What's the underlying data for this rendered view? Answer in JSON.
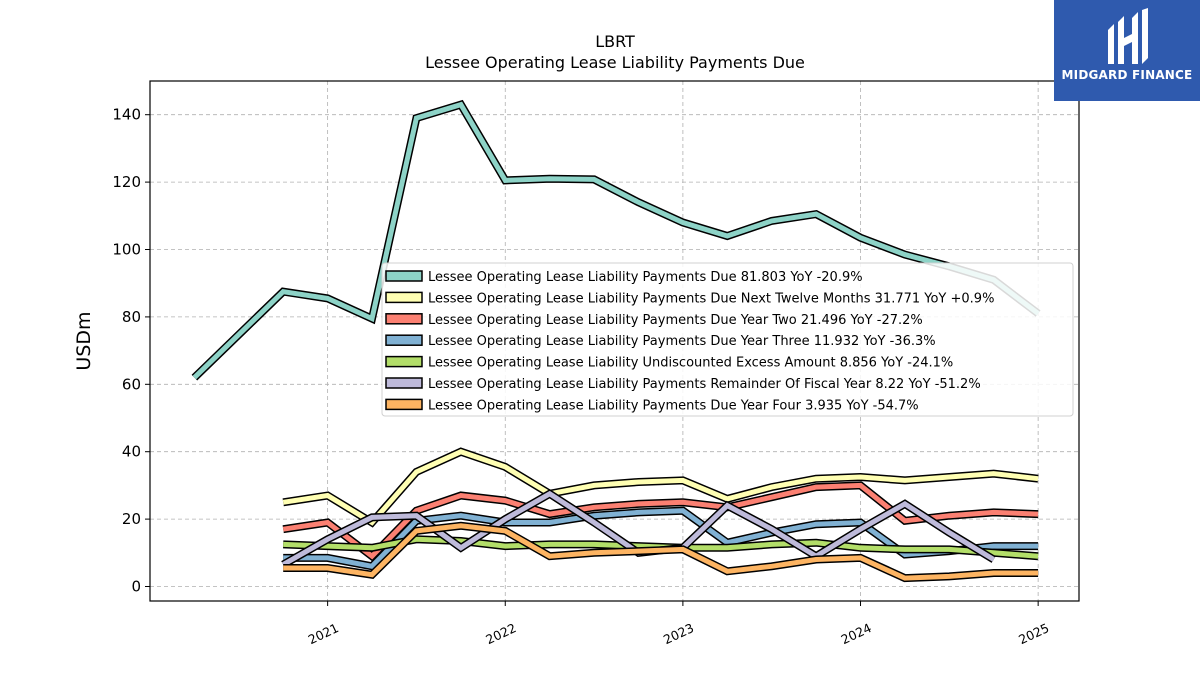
{
  "chart_data": {
    "type": "line",
    "title": "LBRT",
    "subtitle": "Lessee Operating Lease Liability Payments Due",
    "ylabel": "USDm",
    "xlabel": "",
    "xlim": [
      2020.0,
      2025.23
    ],
    "ylim": [
      -4.3,
      150
    ],
    "x_ticks": [
      2021,
      2022,
      2023,
      2024,
      2025
    ],
    "y_ticks": [
      0,
      20,
      40,
      60,
      80,
      100,
      120,
      140
    ],
    "grid": true,
    "legend_position": "center-right",
    "x": [
      2020.25,
      2020.75,
      2021.0,
      2021.25,
      2021.5,
      2021.75,
      2022.0,
      2022.25,
      2022.5,
      2022.75,
      2023.0,
      2023.25,
      2023.5,
      2023.75,
      2024.0,
      2024.25,
      2024.5,
      2024.75,
      2025.0
    ],
    "series": [
      {
        "name": "Lessee Operating Lease Liability Payments Due  81.803 YoY -20.9%",
        "color": "#8dd3c7",
        "values": [
          62,
          87.5,
          85.5,
          79.5,
          139,
          143,
          120.5,
          121,
          120.8,
          114,
          108,
          104,
          108.5,
          110.5,
          103.5,
          98.5,
          95,
          91,
          81
        ]
      },
      {
        "name": "Lessee Operating Lease Liability Payments Due Next Twelve Months  31.771 YoY +0.9%",
        "color": "#ffffb3",
        "values": [
          null,
          25,
          27,
          19,
          34,
          40,
          35.5,
          27.5,
          30,
          31,
          31.5,
          26,
          29.5,
          32,
          32.5,
          31.5,
          32.5,
          33.5,
          32
        ]
      },
      {
        "name": "Lessee Operating Lease Liability Payments Due Year Two  21.496 YoY -27.2%",
        "color": "#fb8072",
        "values": [
          null,
          17,
          19,
          9,
          22.5,
          27,
          25.5,
          21.5,
          23.5,
          24.5,
          25,
          23.5,
          26.5,
          29.5,
          30,
          19.5,
          21,
          22,
          21.5
        ]
      },
      {
        "name": "Lessee Operating Lease Liability Payments Due Year Three  11.932 YoY -36.3%",
        "color": "#80b1d3",
        "values": [
          null,
          8.5,
          8.5,
          6,
          19.5,
          21,
          19,
          19,
          21,
          22,
          22.5,
          13,
          16,
          18.5,
          19,
          9.5,
          10.5,
          12,
          12
        ]
      },
      {
        "name": "Lessee Operating Lease Liability Undiscounted Excess Amount  8.856 YoY -24.1%",
        "color": "#b3de69",
        "values": [
          null,
          12.5,
          12,
          11.5,
          14,
          13.5,
          12,
          12.5,
          12.5,
          12,
          11.5,
          11.5,
          12.5,
          13,
          11.5,
          11,
          11,
          10,
          9
        ]
      },
      {
        "name": "Lessee Operating Lease Liability Payments Remainder Of Fiscal Year  8.22 YoY -51.2%",
        "color": "#bebada",
        "values": [
          null,
          6.5,
          14,
          20.5,
          21,
          11.5,
          20,
          27.5,
          19,
          10,
          11.5,
          24,
          17,
          9,
          17,
          24.5,
          16,
          8,
          null
        ]
      },
      {
        "name": "Lessee Operating Lease Liability Payments Due Year Four  3.935 YoY -54.7%",
        "color": "#fdb462",
        "values": [
          null,
          5.5,
          5.5,
          3.5,
          16.5,
          18,
          16.5,
          9,
          10,
          10.5,
          11,
          4.5,
          6,
          8,
          8.5,
          2.5,
          3,
          4,
          4
        ]
      }
    ]
  },
  "logo": {
    "text": "MIDGARD FINANCE",
    "color": "#2f5aae"
  }
}
